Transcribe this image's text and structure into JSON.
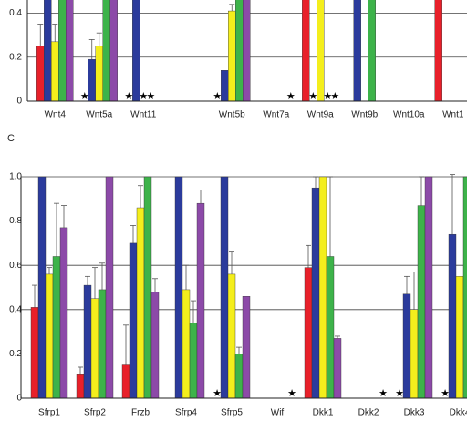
{
  "chart_data": [
    {
      "type": "bar",
      "categories": [
        "Wnt4",
        "Wnt5a",
        "Wnt11",
        null,
        "Wnt5b",
        "Wnt7a",
        "Wnt9a",
        "Wnt9b",
        "Wnt10a",
        "Wnt1"
      ],
      "zero_marker": "★",
      "ylim": [
        0,
        0.46
      ],
      "yticks": [
        0,
        0.2,
        0.4
      ],
      "grid": true,
      "series": [
        {
          "color": "#e8202a",
          "values": [
            0.25,
            0,
            0,
            null,
            0,
            null,
            0.5,
            null,
            null,
            0.5
          ],
          "errors": [
            0.1,
            null,
            null,
            null,
            null,
            null,
            null,
            null,
            null,
            null
          ]
        },
        {
          "color": "#2b3b9c",
          "values": [
            0.5,
            0.19,
            0.5,
            null,
            0.14,
            null,
            0,
            0.5,
            null,
            null
          ],
          "errors": [
            null,
            0.09,
            null,
            null,
            null,
            null,
            null,
            null,
            null,
            null
          ]
        },
        {
          "color": "#f4ee1c",
          "values": [
            0.27,
            0.25,
            0,
            null,
            0.41,
            null,
            0.5,
            null,
            null,
            null
          ],
          "errors": [
            0.08,
            0.06,
            null,
            null,
            0.03,
            null,
            null,
            null,
            null,
            null
          ]
        },
        {
          "color": "#3db34a",
          "values": [
            0.5,
            0.5,
            0,
            null,
            0.5,
            null,
            0,
            0.5,
            null,
            null
          ],
          "errors": [
            null,
            null,
            null,
            null,
            null,
            null,
            null,
            null,
            null,
            null
          ]
        },
        {
          "color": "#8c4aa8",
          "values": [
            0.5,
            0.5,
            null,
            null,
            0.5,
            0,
            0,
            null,
            null,
            null
          ],
          "errors": [
            null,
            null,
            null,
            null,
            null,
            null,
            null,
            null,
            null,
            null
          ]
        }
      ]
    },
    {
      "type": "bar",
      "panel_label": "C",
      "categories": [
        "Sfrp1",
        "Sfrp2",
        "Frzb",
        "Sfrp4",
        "Sfrp5",
        "Wif",
        "Dkk1",
        "Dkk2",
        "Dkk3",
        "Dkk4"
      ],
      "zero_marker": "★",
      "ylim": [
        0,
        1
      ],
      "yticks": [
        0,
        0.2,
        0.4,
        0.6,
        0.8,
        {
          "value": 1,
          "label": "1.0"
        }
      ],
      "grid": true,
      "series": [
        {
          "color": "#e8202a",
          "values": [
            0.41,
            0.11,
            0.15,
            null,
            0,
            null,
            0.59,
            null,
            0,
            0
          ],
          "errors": [
            0.1,
            0.03,
            0.18,
            null,
            null,
            null,
            0.1,
            null,
            null,
            null
          ]
        },
        {
          "color": "#2b3b9c",
          "values": [
            1,
            0.51,
            0.7,
            1,
            1,
            null,
            0.95,
            null,
            0.47,
            0.74
          ],
          "errors": [
            null,
            0.04,
            0.08,
            null,
            null,
            null,
            0.05,
            null,
            0.08,
            0.27
          ]
        },
        {
          "color": "#f4ee1c",
          "values": [
            0.56,
            0.45,
            0.86,
            0.49,
            0.56,
            null,
            1,
            null,
            0.4,
            0.55
          ],
          "errors": [
            0.03,
            0.14,
            0.1,
            0.11,
            0.1,
            null,
            null,
            null,
            0.17,
            null
          ]
        },
        {
          "color": "#3db34a",
          "values": [
            0.64,
            0.49,
            1,
            0.34,
            0.2,
            null,
            0.64,
            null,
            0.87,
            1
          ],
          "errors": [
            0.24,
            0.12,
            null,
            0.1,
            0.03,
            null,
            0.36,
            null,
            0.13,
            null
          ]
        },
        {
          "color": "#8c4aa8",
          "values": [
            0.77,
            1,
            0.48,
            0.88,
            0.46,
            0,
            0.27,
            0,
            1,
            null
          ],
          "errors": [
            0.1,
            null,
            0.06,
            0.06,
            null,
            null,
            0.01,
            null,
            null,
            null
          ]
        }
      ]
    }
  ]
}
